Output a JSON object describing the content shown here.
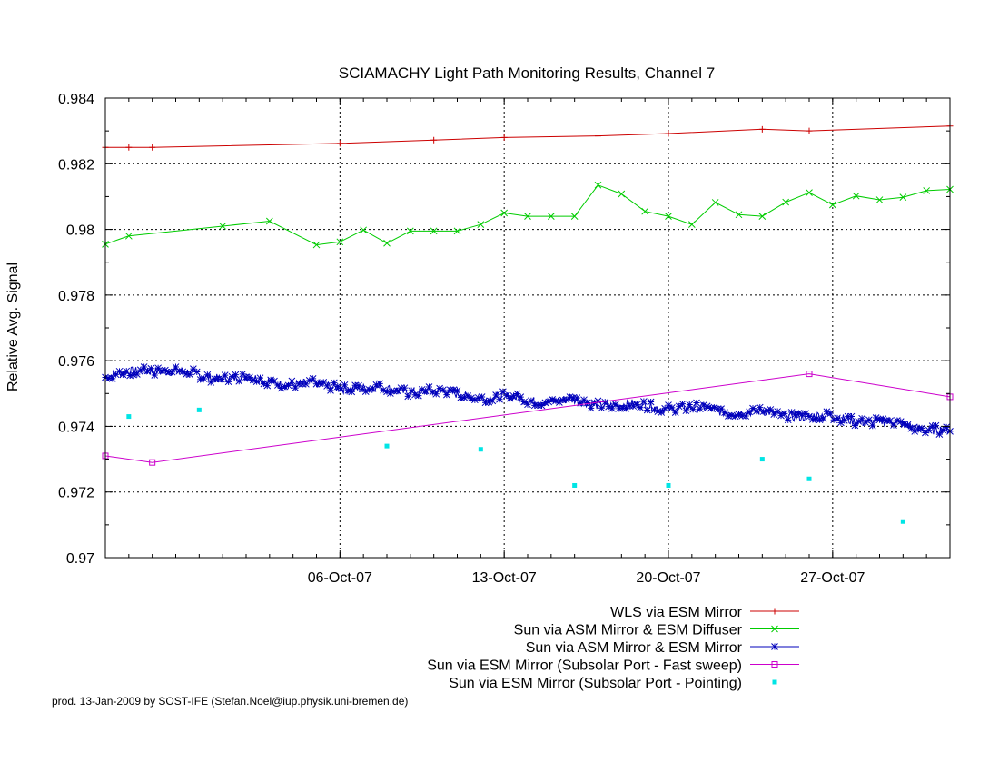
{
  "chart_data": {
    "type": "line",
    "title": "SCIAMACHY Light Path Monitoring Results, Channel 7",
    "xlabel": "",
    "ylabel": "Relative Avg. Signal",
    "x_axis": {
      "type": "date",
      "range": [
        "2007-09-26",
        "2007-11-01"
      ],
      "ticks": [
        "2007-10-06",
        "2007-10-13",
        "2007-10-20",
        "2007-10-27"
      ],
      "tick_labels": [
        "06-Oct-07",
        "13-Oct-07",
        "20-Oct-07",
        "27-Oct-07"
      ]
    },
    "y_axis": {
      "range": [
        0.97,
        0.984
      ],
      "ticks": [
        0.97,
        0.972,
        0.974,
        0.976,
        0.978,
        0.98,
        0.982,
        0.984
      ],
      "tick_labels": [
        "0.97",
        "0.972",
        "0.974",
        "0.976",
        "0.978",
        "0.98",
        "0.982",
        "0.984"
      ]
    },
    "grid": true,
    "legend_position": "bottom-right, below plot",
    "series": [
      {
        "name": "WLS via ESM Mirror",
        "color": "#cc0000",
        "marker": "plus",
        "x": [
          "2007-09-26",
          "2007-09-27",
          "2007-09-28",
          "2007-10-06",
          "2007-10-10",
          "2007-10-13",
          "2007-10-17",
          "2007-10-20",
          "2007-10-24",
          "2007-10-26",
          "2007-11-01"
        ],
        "y": [
          0.9825,
          0.9825,
          0.9825,
          0.98262,
          0.98272,
          0.9828,
          0.98285,
          0.98292,
          0.98305,
          0.983,
          0.98315
        ]
      },
      {
        "name": "Sun via ASM Mirror & ESM Diffuser",
        "color": "#00cc00",
        "marker": "x",
        "x": [
          "2007-09-26",
          "2007-09-27",
          "2007-10-01",
          "2007-10-03",
          "2007-10-05",
          "2007-10-06",
          "2007-10-07",
          "2007-10-08",
          "2007-10-09",
          "2007-10-10",
          "2007-10-11",
          "2007-10-12",
          "2007-10-13",
          "2007-10-14",
          "2007-10-15",
          "2007-10-16",
          "2007-10-17",
          "2007-10-18",
          "2007-10-19",
          "2007-10-20",
          "2007-10-21",
          "2007-10-22",
          "2007-10-23",
          "2007-10-24",
          "2007-10-25",
          "2007-10-26",
          "2007-10-27",
          "2007-10-28",
          "2007-10-29",
          "2007-10-30",
          "2007-10-31",
          "2007-11-01"
        ],
        "y": [
          0.97955,
          0.9798,
          0.9801,
          0.98025,
          0.97953,
          0.97962,
          0.97998,
          0.97958,
          0.97995,
          0.97995,
          0.97995,
          0.98015,
          0.9805,
          0.9804,
          0.9804,
          0.9804,
          0.98135,
          0.98108,
          0.98055,
          0.9804,
          0.98015,
          0.98082,
          0.98045,
          0.9804,
          0.98083,
          0.98112,
          0.98075,
          0.98102,
          0.9809,
          0.98098,
          0.98118,
          0.98122
        ]
      },
      {
        "name": "Sun via ASM Mirror & ESM Mirror",
        "color": "#0000bb",
        "marker": "star",
        "x": [
          "2007-09-26",
          "2007-09-28",
          "2007-09-30",
          "2007-10-02",
          "2007-10-04",
          "2007-10-06",
          "2007-10-08",
          "2007-10-10",
          "2007-10-12",
          "2007-10-14",
          "2007-10-16",
          "2007-10-18",
          "2007-10-20",
          "2007-10-22",
          "2007-10-24",
          "2007-10-26",
          "2007-10-28",
          "2007-10-30",
          "2007-11-01"
        ],
        "y": [
          0.9755,
          0.97575,
          0.97555,
          0.97545,
          0.9753,
          0.9752,
          0.97512,
          0.97505,
          0.9749,
          0.97482,
          0.97475,
          0.97465,
          0.97458,
          0.9745,
          0.9744,
          0.97432,
          0.9742,
          0.97405,
          0.97385
        ],
        "note": "dense daily-sampled series (approx. 10 points/day, noisy around this trend)"
      },
      {
        "name": "Sun via ESM Mirror (Subsolar Port - Fast sweep)",
        "color": "#cc00cc",
        "marker": "square",
        "x": [
          "2007-09-26",
          "2007-09-28",
          "2007-10-26",
          "2007-11-01"
        ],
        "y": [
          0.9731,
          0.9729,
          0.9756,
          0.9749
        ]
      },
      {
        "name": "Sun via ESM Mirror (Subsolar Port - Pointing)",
        "color": "#00e5e5",
        "marker": "dot",
        "x": [
          "2007-09-27",
          "2007-09-30",
          "2007-10-08",
          "2007-10-12",
          "2007-10-16",
          "2007-10-20",
          "2007-10-24",
          "2007-10-26",
          "2007-10-30"
        ],
        "y": [
          0.9743,
          0.9745,
          0.9734,
          0.9733,
          0.9722,
          0.9722,
          0.973,
          0.9724,
          0.9711
        ]
      }
    ],
    "footer": "prod. 13-Jan-2009 by SOST-IFE (Stefan.Noel@iup.physik.uni-bremen.de)"
  }
}
